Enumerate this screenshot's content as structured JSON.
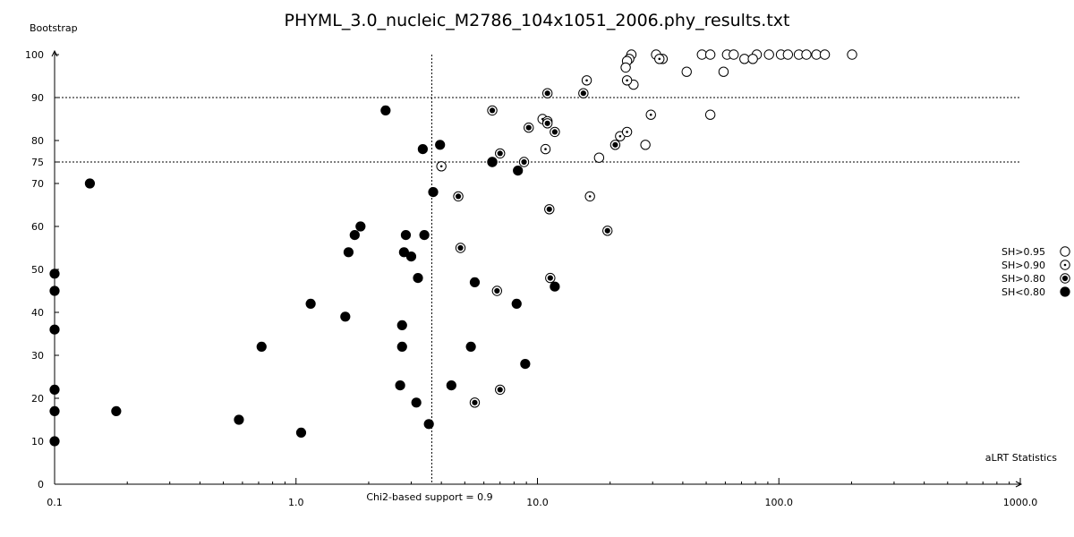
{
  "chart_data": {
    "type": "scatter",
    "title": "PHYML_3.0_nucleic_M2786_104x1051_2006.phy_results.txt",
    "xlabel": "aLRT Statistics",
    "ylabel": "Bootstrap",
    "xscale": "log",
    "xlim": [
      0.1,
      1000.0
    ],
    "ylim": [
      0,
      100
    ],
    "xticks": [
      {
        "value": 0.1,
        "label": "0.1"
      },
      {
        "value": 1,
        "label": "1.0"
      },
      {
        "value": 10,
        "label": "10.0"
      },
      {
        "value": 100,
        "label": "100.0"
      },
      {
        "value": 1000,
        "label": "1000.0"
      }
    ],
    "yticks": [
      {
        "value": 0,
        "label": "0"
      },
      {
        "value": 10,
        "label": "10"
      },
      {
        "value": 20,
        "label": "20"
      },
      {
        "value": 30,
        "label": "30"
      },
      {
        "value": 40,
        "label": "40"
      },
      {
        "value": 50,
        "label": "50"
      },
      {
        "value": 60,
        "label": "60"
      },
      {
        "value": 70,
        "label": "70"
      },
      {
        "value": 75,
        "label": "75"
      },
      {
        "value": 80,
        "label": "80"
      },
      {
        "value": 90,
        "label": "90"
      },
      {
        "value": 100,
        "label": "100"
      }
    ],
    "reference_lines": {
      "vertical_x": 3.65,
      "vertical_label": "Chi2-based support = 0.9",
      "horizontal_y": [
        90,
        75
      ]
    },
    "legend_position": "right",
    "series": [
      {
        "name": "SH>0.95",
        "marker": "open",
        "points": [
          [
            24.5,
            100
          ],
          [
            31,
            100
          ],
          [
            48,
            100
          ],
          [
            52,
            100
          ],
          [
            61,
            100
          ],
          [
            65,
            100
          ],
          [
            81,
            100
          ],
          [
            91,
            100
          ],
          [
            102,
            100
          ],
          [
            109,
            100
          ],
          [
            121,
            100
          ],
          [
            130,
            100
          ],
          [
            143,
            100
          ],
          [
            155,
            100
          ],
          [
            201,
            100
          ],
          [
            24,
            99
          ],
          [
            23.5,
            98.5
          ],
          [
            33,
            99
          ],
          [
            72,
            99
          ],
          [
            78,
            99
          ],
          [
            23.2,
            97
          ],
          [
            59,
            96
          ],
          [
            41.5,
            96
          ],
          [
            25,
            93
          ],
          [
            52,
            86
          ],
          [
            28,
            79
          ],
          [
            18,
            76
          ]
        ]
      },
      {
        "name": "SH>0.90",
        "marker": "dot",
        "points": [
          [
            32,
            99
          ],
          [
            16,
            94
          ],
          [
            23.5,
            94
          ],
          [
            10.5,
            85
          ],
          [
            29.5,
            86
          ],
          [
            22,
            81
          ],
          [
            23.5,
            82
          ],
          [
            11,
            84.5
          ],
          [
            16.5,
            67
          ],
          [
            10.8,
            78
          ],
          [
            4,
            74
          ]
        ]
      },
      {
        "name": "SH>0.80",
        "marker": "dotted-filled",
        "points": [
          [
            11,
            91
          ],
          [
            15.5,
            91
          ],
          [
            6.5,
            87
          ],
          [
            11,
            84
          ],
          [
            11.8,
            82
          ],
          [
            9.2,
            83
          ],
          [
            21,
            79
          ],
          [
            6.5,
            75
          ],
          [
            7,
            77
          ],
          [
            8.8,
            75
          ],
          [
            4.7,
            67
          ],
          [
            11.2,
            64
          ],
          [
            19.5,
            59
          ],
          [
            4.8,
            55
          ],
          [
            11.3,
            48
          ],
          [
            6.8,
            45
          ],
          [
            5.5,
            19
          ],
          [
            7,
            22
          ]
        ]
      },
      {
        "name": "SH<0.80",
        "marker": "filled",
        "points": [
          [
            2.35,
            87
          ],
          [
            3.35,
            78
          ],
          [
            3.95,
            79
          ],
          [
            6.5,
            75
          ],
          [
            8.3,
            73
          ],
          [
            0.14,
            70
          ],
          [
            3.7,
            68
          ],
          [
            1.85,
            60
          ],
          [
            1.75,
            58
          ],
          [
            2.85,
            58
          ],
          [
            3.4,
            58
          ],
          [
            1.65,
            54
          ],
          [
            2.8,
            54
          ],
          [
            3,
            53
          ],
          [
            3.2,
            48
          ],
          [
            5.5,
            47
          ],
          [
            11.8,
            46
          ],
          [
            0.1,
            49
          ],
          [
            0.1,
            45
          ],
          [
            1.15,
            42
          ],
          [
            8.2,
            42
          ],
          [
            1.6,
            39
          ],
          [
            2.75,
            37
          ],
          [
            0.1,
            36
          ],
          [
            0.72,
            32
          ],
          [
            2.75,
            32
          ],
          [
            5.3,
            32
          ],
          [
            8.9,
            28
          ],
          [
            2.7,
            23
          ],
          [
            4.4,
            23
          ],
          [
            3.15,
            19
          ],
          [
            0.1,
            22
          ],
          [
            0.18,
            17
          ],
          [
            0.1,
            17
          ],
          [
            0.58,
            15
          ],
          [
            3.55,
            14
          ],
          [
            1.05,
            12
          ],
          [
            0.1,
            10
          ]
        ]
      }
    ]
  }
}
